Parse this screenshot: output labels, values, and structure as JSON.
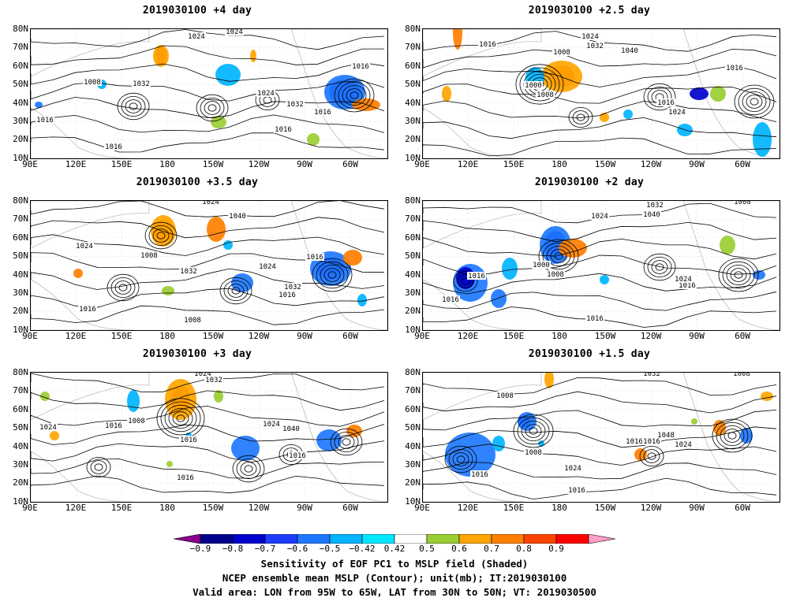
{
  "panels": [
    {
      "title": "2019030100 +4 day",
      "labels": [
        "1016",
        "1024",
        "1008",
        "1024",
        "1032",
        "1024",
        "1032",
        "1016",
        "1016",
        "1016",
        "1016"
      ]
    },
    {
      "title": "2019030100 +2.5 day",
      "labels": [
        "1016",
        "1024",
        "1032",
        "1040",
        "1008",
        "1000",
        "1008",
        "1016",
        "1024",
        "1016"
      ]
    },
    {
      "title": "2019030100 +3.5 day",
      "labels": [
        "1016",
        "1024",
        "1040",
        "1024",
        "1008",
        "1032",
        "1024",
        "1016",
        "1032",
        "1016",
        "1016",
        "1008"
      ]
    },
    {
      "title": "2019030100 +2 day",
      "labels": [
        "1032",
        "1040",
        "1024",
        "1000",
        "1008",
        "1016",
        "1016",
        "1016",
        "1024",
        "1016",
        "1008"
      ]
    },
    {
      "title": "2019030100 +3 day",
      "labels": [
        "1024",
        "1032",
        "1016",
        "1008",
        "1024",
        "1016",
        "1024",
        "1040",
        "1016",
        "1016"
      ]
    },
    {
      "title": "2019030100 +1.5 day",
      "labels": [
        "1032",
        "1008",
        "1008",
        "1016",
        "1024",
        "1016",
        "1048",
        "1024",
        "1008",
        "1016",
        "1016"
      ]
    }
  ],
  "axes": {
    "lat_labels": [
      "80N",
      "70N",
      "60N",
      "50N",
      "40N",
      "30N",
      "20N",
      "10N"
    ],
    "lon_labels": [
      "90E",
      "120E",
      "150E",
      "180",
      "150W",
      "120W",
      "90W",
      "60W"
    ]
  },
  "colorbar": {
    "labels": [
      "−0.9",
      "−0.8",
      "−0.7",
      "−0.6",
      "−0.5",
      "−0.42",
      "0.42",
      "0.5",
      "0.6",
      "0.7",
      "0.8",
      "0.9"
    ],
    "colors": [
      "#8b008b",
      "#00008b",
      "#0000cd",
      "#1e3cff",
      "#1e78ff",
      "#00b4ff",
      "#00e6ff",
      "#ffffff",
      "#9acd32",
      "#ffa500",
      "#ff7f00",
      "#ff4500",
      "#ff0000",
      "#ff9ec8"
    ]
  },
  "captions": [
    "Sensitivity of EOF PC1 to MSLP field (Shaded)",
    "NCEP ensemble mean MSLP (Contour); unit(mb); IT:2019030100",
    "Valid area: LON from 95W to 65W, LAT from 30N to 50N; VT: 2019030500"
  ]
}
